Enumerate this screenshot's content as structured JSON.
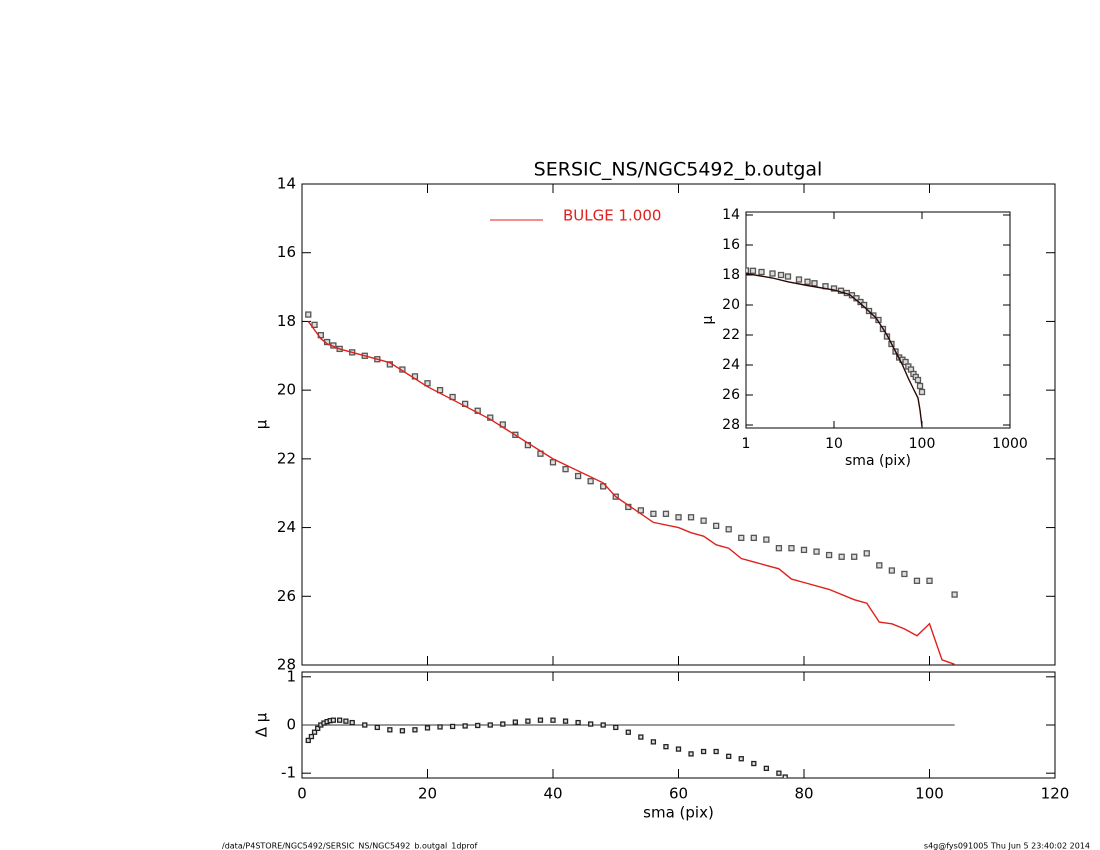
{
  "chart_data": [
    {
      "type": "scatter-line",
      "title": "SERSIC_NS/NGC5492_b.outgal",
      "y_label": "μ",
      "xlim": [
        0,
        120
      ],
      "xticks": [
        0,
        20,
        40,
        60,
        80,
        100,
        120
      ],
      "ylim": [
        14,
        28
      ],
      "yticks": [
        14,
        16,
        18,
        20,
        22,
        24,
        26,
        28
      ],
      "y_inverted": true,
      "legend": "top",
      "series": [
        {
          "kind": "points",
          "color": "#555555",
          "x": [
            1,
            2,
            3,
            4,
            5,
            6,
            8,
            10,
            12,
            14,
            16,
            18,
            20,
            22,
            24,
            26,
            28,
            30,
            32,
            34,
            36,
            38,
            40,
            42,
            44,
            46,
            48,
            50,
            52,
            54,
            56,
            58,
            60,
            62,
            64,
            66,
            68,
            70,
            72,
            74,
            76,
            78,
            80,
            82,
            84,
            86,
            88,
            90,
            92,
            94,
            96,
            98,
            100,
            104
          ],
          "values": [
            17.8,
            18.1,
            18.4,
            18.6,
            18.7,
            18.8,
            18.9,
            19.0,
            19.1,
            19.25,
            19.4,
            19.6,
            19.8,
            20.0,
            20.2,
            20.4,
            20.6,
            20.8,
            21.0,
            21.3,
            21.6,
            21.85,
            22.1,
            22.3,
            22.5,
            22.65,
            22.8,
            23.1,
            23.4,
            23.5,
            23.6,
            23.6,
            23.7,
            23.7,
            23.8,
            23.95,
            24.05,
            24.3,
            24.3,
            24.35,
            24.6,
            24.6,
            24.65,
            24.7,
            24.8,
            24.85,
            24.85,
            24.75,
            25.1,
            25.25,
            25.35,
            25.55,
            25.55,
            25.95
          ]
        },
        {
          "kind": "line",
          "name": "BULGE  1.000",
          "color": "#e0201c",
          "x": [
            1,
            2,
            3,
            4,
            6,
            10,
            14,
            20,
            30,
            40,
            48,
            50,
            54,
            56,
            60,
            62,
            64,
            66,
            68,
            70,
            72,
            74,
            76,
            78,
            80,
            84,
            88,
            90,
            92,
            94,
            96,
            98,
            100,
            102,
            104
          ],
          "values": [
            18.0,
            18.25,
            18.5,
            18.65,
            18.8,
            19.0,
            19.2,
            19.9,
            20.85,
            22.0,
            22.7,
            23.1,
            23.6,
            23.85,
            24.0,
            24.15,
            24.25,
            24.5,
            24.6,
            24.9,
            25.0,
            25.1,
            25.2,
            25.5,
            25.6,
            25.8,
            26.1,
            26.2,
            26.75,
            26.8,
            26.95,
            27.15,
            26.8,
            27.85,
            27.98
          ]
        }
      ]
    },
    {
      "type": "residual",
      "x_label": "sma (pix)",
      "y_label": "Δ μ",
      "xlim": [
        0,
        120
      ],
      "xticks": [
        0,
        20,
        40,
        60,
        80,
        100,
        120
      ],
      "ylim": [
        -1.1,
        1.1
      ],
      "yticks": [
        -1,
        0,
        1
      ],
      "series": [
        {
          "kind": "points",
          "color": "#222222",
          "x": [
            1,
            1.5,
            2,
            2.5,
            3,
            3.5,
            4,
            4.5,
            5,
            6,
            7,
            8,
            10,
            12,
            14,
            16,
            18,
            20,
            22,
            24,
            26,
            28,
            30,
            32,
            34,
            36,
            38,
            40,
            42,
            44,
            46,
            48,
            50,
            52,
            54,
            56,
            58,
            60,
            62,
            64,
            66,
            68,
            70,
            72,
            74,
            76,
            77
          ],
          "values": [
            -0.32,
            -0.24,
            -0.15,
            -0.07,
            0,
            0.04,
            0.07,
            0.09,
            0.1,
            0.1,
            0.08,
            0.05,
            0,
            -0.05,
            -0.1,
            -0.12,
            -0.1,
            -0.06,
            -0.04,
            -0.03,
            -0.02,
            -0.01,
            0.0,
            0.02,
            0.06,
            0.08,
            0.1,
            0.1,
            0.08,
            0.05,
            0.02,
            0,
            -0.05,
            -0.15,
            -0.25,
            -0.35,
            -0.45,
            -0.5,
            -0.6,
            -0.55,
            -0.55,
            -0.65,
            -0.7,
            -0.8,
            -0.9,
            -1.0,
            -1.08
          ]
        }
      ]
    },
    {
      "type": "inset",
      "x_label": "sma (pix)",
      "y_label": "μ",
      "log_x": true,
      "xlim": [
        1,
        1000
      ],
      "xticks": [
        1,
        10,
        100,
        1000
      ],
      "ylim": [
        13.8,
        28.2
      ],
      "yticks": [
        14,
        16,
        18,
        20,
        22,
        24,
        26,
        28
      ],
      "y_inverted": true,
      "series": [
        {
          "kind": "points",
          "color": "#555555",
          "x": [
            1,
            1.2,
            1.5,
            2,
            2.5,
            3,
            4,
            5,
            6,
            8,
            10,
            12,
            14,
            16,
            18,
            20,
            22,
            25,
            28,
            32,
            36,
            40,
            45,
            50,
            55,
            60,
            65,
            70,
            75,
            80,
            85,
            90,
            95,
            100
          ],
          "values": [
            17.7,
            17.72,
            17.8,
            17.9,
            18.0,
            18.1,
            18.3,
            18.45,
            18.55,
            18.75,
            18.9,
            19.05,
            19.2,
            19.35,
            19.55,
            19.8,
            20.0,
            20.4,
            20.7,
            21.0,
            21.6,
            22.1,
            22.6,
            23.1,
            23.5,
            23.65,
            23.8,
            24.1,
            24.3,
            24.6,
            24.8,
            25.0,
            25.4,
            25.8
          ]
        },
        {
          "kind": "line",
          "color": "#2a0808",
          "x": [
            1,
            2,
            3,
            5,
            10,
            15,
            20,
            30,
            40,
            50,
            60,
            70,
            80,
            90,
            95,
            100
          ],
          "values": [
            17.9,
            18.2,
            18.45,
            18.7,
            19.0,
            19.3,
            19.9,
            20.85,
            22.0,
            23.1,
            24.0,
            24.9,
            25.6,
            26.2,
            27.0,
            28.1
          ]
        }
      ]
    }
  ],
  "footer": {
    "path": "/data/P4STORE/NGC5492/SERSIC_NS/NGC5492_b.outgal_1dprof",
    "stamp": "s4g@fys091005  Thu Jun  5 23:40:02 2014"
  }
}
